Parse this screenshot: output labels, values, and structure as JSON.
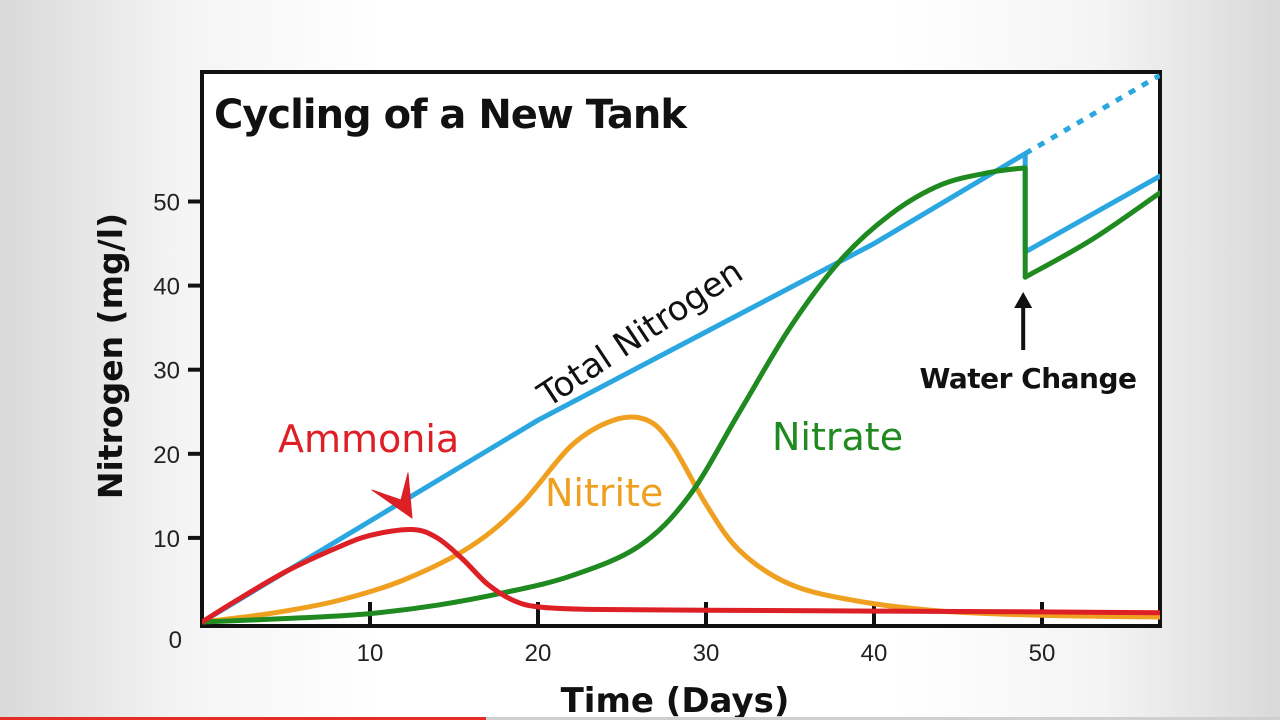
{
  "chart_data": {
    "type": "line",
    "title": "Cycling of a New Tank",
    "xlabel": "Time (Days)",
    "ylabel": "Nitrogen (mg/l)",
    "xlim": [
      0,
      57
    ],
    "ylim": [
      0,
      65
    ],
    "x_ticks": [
      10,
      20,
      30,
      40,
      50
    ],
    "y_ticks": [
      10,
      20,
      30,
      40,
      50
    ],
    "origin_label": "0",
    "grid": false,
    "series": [
      {
        "name": "Total Nitrogen",
        "color": "#2aa7e0",
        "points": [
          [
            0,
            0
          ],
          [
            10,
            12
          ],
          [
            20,
            24
          ],
          [
            30,
            34.5
          ],
          [
            40,
            45
          ],
          [
            49,
            55.7
          ]
        ],
        "after_water_change": [
          [
            49,
            44
          ],
          [
            57,
            53
          ]
        ],
        "projection": [
          [
            49,
            55.7
          ],
          [
            57,
            65
          ]
        ]
      },
      {
        "name": "Nitrite",
        "color": "#f0a020",
        "points": [
          [
            0,
            0
          ],
          [
            4,
            1
          ],
          [
            8,
            2.5
          ],
          [
            12,
            5
          ],
          [
            16,
            9
          ],
          [
            19,
            14
          ],
          [
            22,
            21
          ],
          [
            24.5,
            24
          ],
          [
            26.5,
            24
          ],
          [
            28,
            21
          ],
          [
            30,
            14
          ],
          [
            32,
            8.5
          ],
          [
            35,
            4.5
          ],
          [
            39,
            2.5
          ],
          [
            44,
            1.3
          ],
          [
            50,
            0.8
          ],
          [
            57,
            0.6
          ]
        ]
      },
      {
        "name": "Nitrate",
        "color": "#1f8a1f",
        "points": [
          [
            0,
            0
          ],
          [
            6,
            0.5
          ],
          [
            10,
            1
          ],
          [
            14,
            2
          ],
          [
            18,
            3.5
          ],
          [
            22,
            5.5
          ],
          [
            26,
            9
          ],
          [
            29,
            15
          ],
          [
            32,
            25
          ],
          [
            35,
            35
          ],
          [
            38,
            43
          ],
          [
            41,
            48.5
          ],
          [
            44,
            52
          ],
          [
            47,
            53.5
          ],
          [
            49,
            54
          ]
        ],
        "after_water_change": [
          [
            49,
            41
          ],
          [
            53,
            45.5
          ],
          [
            57,
            51
          ]
        ]
      },
      {
        "name": "Ammonia",
        "color": "#dd1f26",
        "points": [
          [
            0,
            0
          ],
          [
            2,
            2.5
          ],
          [
            5,
            6
          ],
          [
            8,
            8.8
          ],
          [
            10,
            10.3
          ],
          [
            12.5,
            11
          ],
          [
            14,
            10
          ],
          [
            15.5,
            7.5
          ],
          [
            17,
            4.5
          ],
          [
            18.5,
            2.6
          ],
          [
            20,
            1.8
          ],
          [
            23,
            1.5
          ],
          [
            30,
            1.4
          ],
          [
            40,
            1.3
          ],
          [
            50,
            1.2
          ],
          [
            57,
            1.1
          ]
        ]
      }
    ],
    "annotations": {
      "total_nitrogen": "Total Nitrogen",
      "ammonia": "Ammonia",
      "nitrite": "Nitrite",
      "nitrate": "Nitrate",
      "water_change": "Water Change",
      "water_change_day": 49
    }
  },
  "video_progress": 0.38
}
